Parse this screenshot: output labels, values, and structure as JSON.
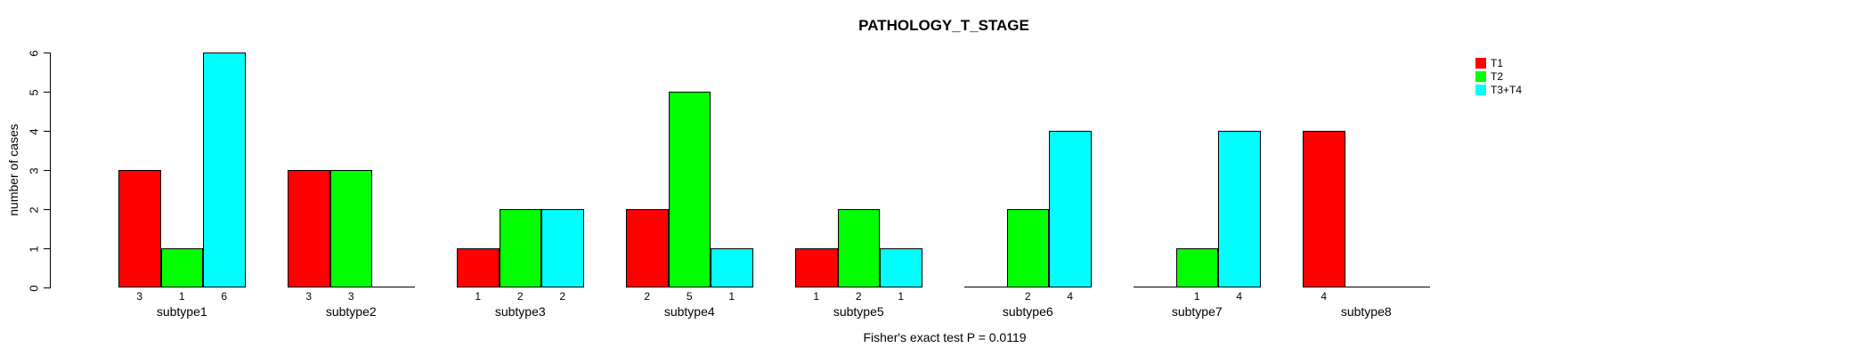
{
  "chart_data": {
    "type": "bar",
    "title": "PATHOLOGY_T_STAGE",
    "subtitle": "Fisher's exact test P = 0.0119",
    "xlabel": "",
    "ylabel": "number of cases",
    "ylim": [
      0,
      6
    ],
    "yticks": [
      0,
      1,
      2,
      3,
      4,
      5,
      6
    ],
    "grid": false,
    "legend_position": "top-right",
    "background_color": "#FFFFFF",
    "axis_color": "#000000",
    "bar_border_color": "#000000",
    "show_bar_values": true,
    "zero_values_drawn_as_baseline_segments": true,
    "categories": [
      "subtype1",
      "subtype2",
      "subtype3",
      "subtype4",
      "subtype5",
      "subtype6",
      "subtype7",
      "subtype8"
    ],
    "series": [
      {
        "name": "T1",
        "color": "#FF0000",
        "values": [
          3,
          3,
          1,
          2,
          1,
          0,
          0,
          4
        ]
      },
      {
        "name": "T2",
        "color": "#00FF00",
        "values": [
          1,
          3,
          2,
          5,
          2,
          2,
          1,
          0
        ]
      },
      {
        "name": "T3+T4",
        "color": "#00FFFF",
        "values": [
          6,
          0,
          2,
          1,
          1,
          4,
          4,
          0
        ]
      }
    ]
  }
}
